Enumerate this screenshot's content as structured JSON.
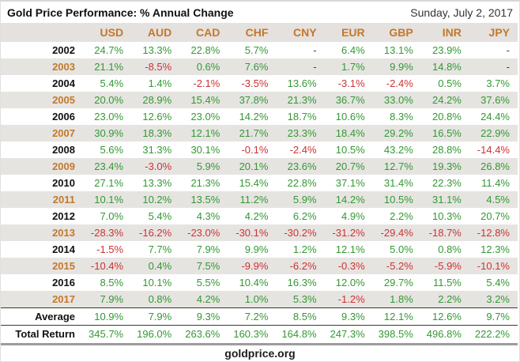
{
  "header": {
    "title": "Gold Price Performance: % Annual Change",
    "date": "Sunday, July 2, 2017"
  },
  "chart_data": {
    "type": "table",
    "title": "Gold Price Performance: % Annual Change",
    "date_label": "Sunday, July 2, 2017",
    "columns": [
      "USD",
      "AUD",
      "CAD",
      "CHF",
      "CNY",
      "EUR",
      "GBP",
      "INR",
      "JPY"
    ],
    "rows": [
      {
        "label": "2002",
        "type": "year",
        "shaded": false,
        "accent": false,
        "values": [
          "24.7%",
          "13.3%",
          "22.8%",
          "5.7%",
          "-",
          "6.4%",
          "13.1%",
          "23.9%",
          "-"
        ]
      },
      {
        "label": "2003",
        "type": "year",
        "shaded": true,
        "accent": true,
        "values": [
          "21.1%",
          "-8.5%",
          "0.6%",
          "7.6%",
          "-",
          "1.7%",
          "9.9%",
          "14.8%",
          "-"
        ]
      },
      {
        "label": "2004",
        "type": "year",
        "shaded": false,
        "accent": false,
        "values": [
          "5.4%",
          "1.4%",
          "-2.1%",
          "-3.5%",
          "13.6%",
          "-3.1%",
          "-2.4%",
          "0.5%",
          "3.7%"
        ]
      },
      {
        "label": "2005",
        "type": "year",
        "shaded": true,
        "accent": true,
        "values": [
          "20.0%",
          "28.9%",
          "15.4%",
          "37.8%",
          "21.3%",
          "36.7%",
          "33.0%",
          "24.2%",
          "37.6%"
        ]
      },
      {
        "label": "2006",
        "type": "year",
        "shaded": false,
        "accent": false,
        "values": [
          "23.0%",
          "12.6%",
          "23.0%",
          "14.2%",
          "18.7%",
          "10.6%",
          "8.3%",
          "20.8%",
          "24.4%"
        ]
      },
      {
        "label": "2007",
        "type": "year",
        "shaded": true,
        "accent": true,
        "values": [
          "30.9%",
          "18.3%",
          "12.1%",
          "21.7%",
          "23.3%",
          "18.4%",
          "29.2%",
          "16.5%",
          "22.9%"
        ]
      },
      {
        "label": "2008",
        "type": "year",
        "shaded": false,
        "accent": false,
        "values": [
          "5.6%",
          "31.3%",
          "30.1%",
          "-0.1%",
          "-2.4%",
          "10.5%",
          "43.2%",
          "28.8%",
          "-14.4%"
        ]
      },
      {
        "label": "2009",
        "type": "year",
        "shaded": true,
        "accent": true,
        "values": [
          "23.4%",
          "-3.0%",
          "5.9%",
          "20.1%",
          "23.6%",
          "20.7%",
          "12.7%",
          "19.3%",
          "26.8%"
        ]
      },
      {
        "label": "2010",
        "type": "year",
        "shaded": false,
        "accent": false,
        "values": [
          "27.1%",
          "13.3%",
          "21.3%",
          "15.4%",
          "22.8%",
          "37.1%",
          "31.4%",
          "22.3%",
          "11.4%"
        ]
      },
      {
        "label": "2011",
        "type": "year",
        "shaded": true,
        "accent": true,
        "values": [
          "10.1%",
          "10.2%",
          "13.5%",
          "11.2%",
          "5.9%",
          "14.2%",
          "10.5%",
          "31.1%",
          "4.5%"
        ]
      },
      {
        "label": "2012",
        "type": "year",
        "shaded": false,
        "accent": false,
        "values": [
          "7.0%",
          "5.4%",
          "4.3%",
          "4.2%",
          "6.2%",
          "4.9%",
          "2.2%",
          "10.3%",
          "20.7%"
        ]
      },
      {
        "label": "2013",
        "type": "year",
        "shaded": true,
        "accent": true,
        "values": [
          "-28.3%",
          "-16.2%",
          "-23.0%",
          "-30.1%",
          "-30.2%",
          "-31.2%",
          "-29.4%",
          "-18.7%",
          "-12.8%"
        ]
      },
      {
        "label": "2014",
        "type": "year",
        "shaded": false,
        "accent": false,
        "values": [
          "-1.5%",
          "7.7%",
          "7.9%",
          "9.9%",
          "1.2%",
          "12.1%",
          "5.0%",
          "0.8%",
          "12.3%"
        ]
      },
      {
        "label": "2015",
        "type": "year",
        "shaded": true,
        "accent": true,
        "values": [
          "-10.4%",
          "0.4%",
          "7.5%",
          "-9.9%",
          "-6.2%",
          "-0.3%",
          "-5.2%",
          "-5.9%",
          "-10.1%"
        ]
      },
      {
        "label": "2016",
        "type": "year",
        "shaded": false,
        "accent": false,
        "values": [
          "8.5%",
          "10.1%",
          "5.5%",
          "10.4%",
          "16.3%",
          "12.0%",
          "29.7%",
          "11.5%",
          "5.4%"
        ]
      },
      {
        "label": "2017",
        "type": "year",
        "shaded": true,
        "accent": true,
        "values": [
          "7.9%",
          "0.8%",
          "4.2%",
          "1.0%",
          "5.3%",
          "-1.2%",
          "1.8%",
          "2.2%",
          "3.2%"
        ]
      },
      {
        "label": "Average",
        "type": "average",
        "shaded": false,
        "accent": false,
        "values": [
          "10.9%",
          "7.9%",
          "9.3%",
          "7.2%",
          "8.5%",
          "9.3%",
          "12.1%",
          "12.6%",
          "9.7%"
        ]
      },
      {
        "label": "Total Return",
        "type": "total",
        "shaded": false,
        "accent": false,
        "values": [
          "345.7%",
          "196.0%",
          "263.6%",
          "160.3%",
          "164.8%",
          "247.3%",
          "398.5%",
          "496.8%",
          "222.2%"
        ]
      }
    ]
  },
  "footer": {
    "source": "goldprice.org"
  },
  "colors": {
    "positive": "#339933",
    "negative": "#cc3333",
    "accent_orange": "#c4782a",
    "row_stripe": "#e6e4e1",
    "header_bg": "#e4e1de"
  }
}
